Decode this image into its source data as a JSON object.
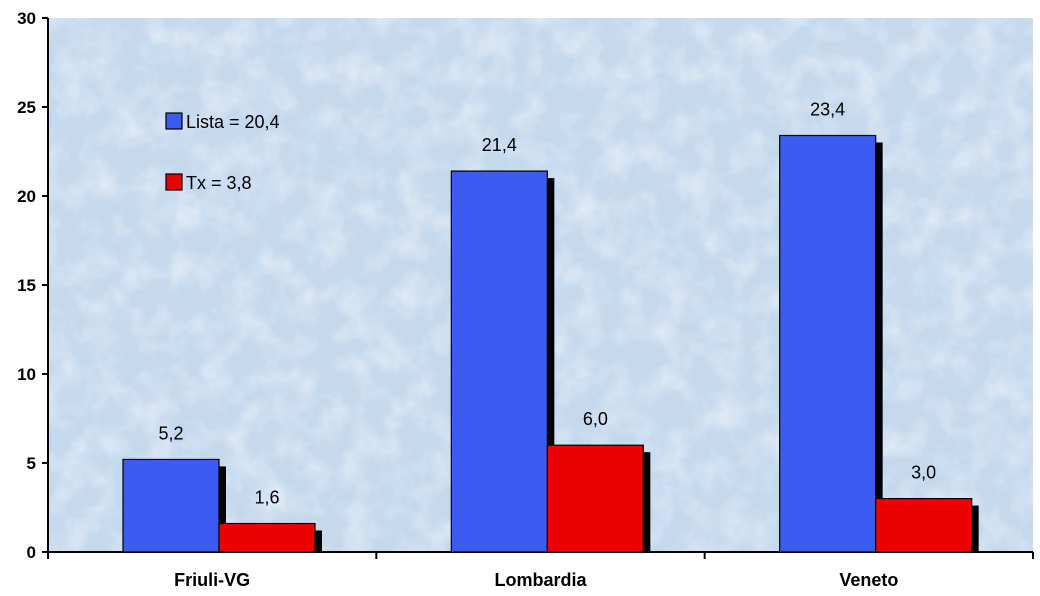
{
  "chart_data": {
    "type": "bar",
    "categories": [
      "Friuli-VG",
      "Lombardia",
      "Veneto"
    ],
    "series": [
      {
        "name": "Lista = 20,4",
        "values": [
          5.2,
          21.4,
          23.4
        ],
        "labels": [
          "5,2",
          "21,4",
          "23,4"
        ],
        "color": "#3b5cf0"
      },
      {
        "name": "Tx = 3,8",
        "values": [
          1.6,
          6.0,
          3.0
        ],
        "labels": [
          "1,6",
          "6,0",
          "3,0"
        ],
        "color": "#ee0000"
      }
    ],
    "ylim": [
      0,
      30
    ],
    "yticks": [
      "0",
      "5",
      "10",
      "15",
      "20",
      "25",
      "30"
    ],
    "legend": "top-left",
    "grid": false,
    "title": "",
    "xlabel": "",
    "ylabel": ""
  }
}
